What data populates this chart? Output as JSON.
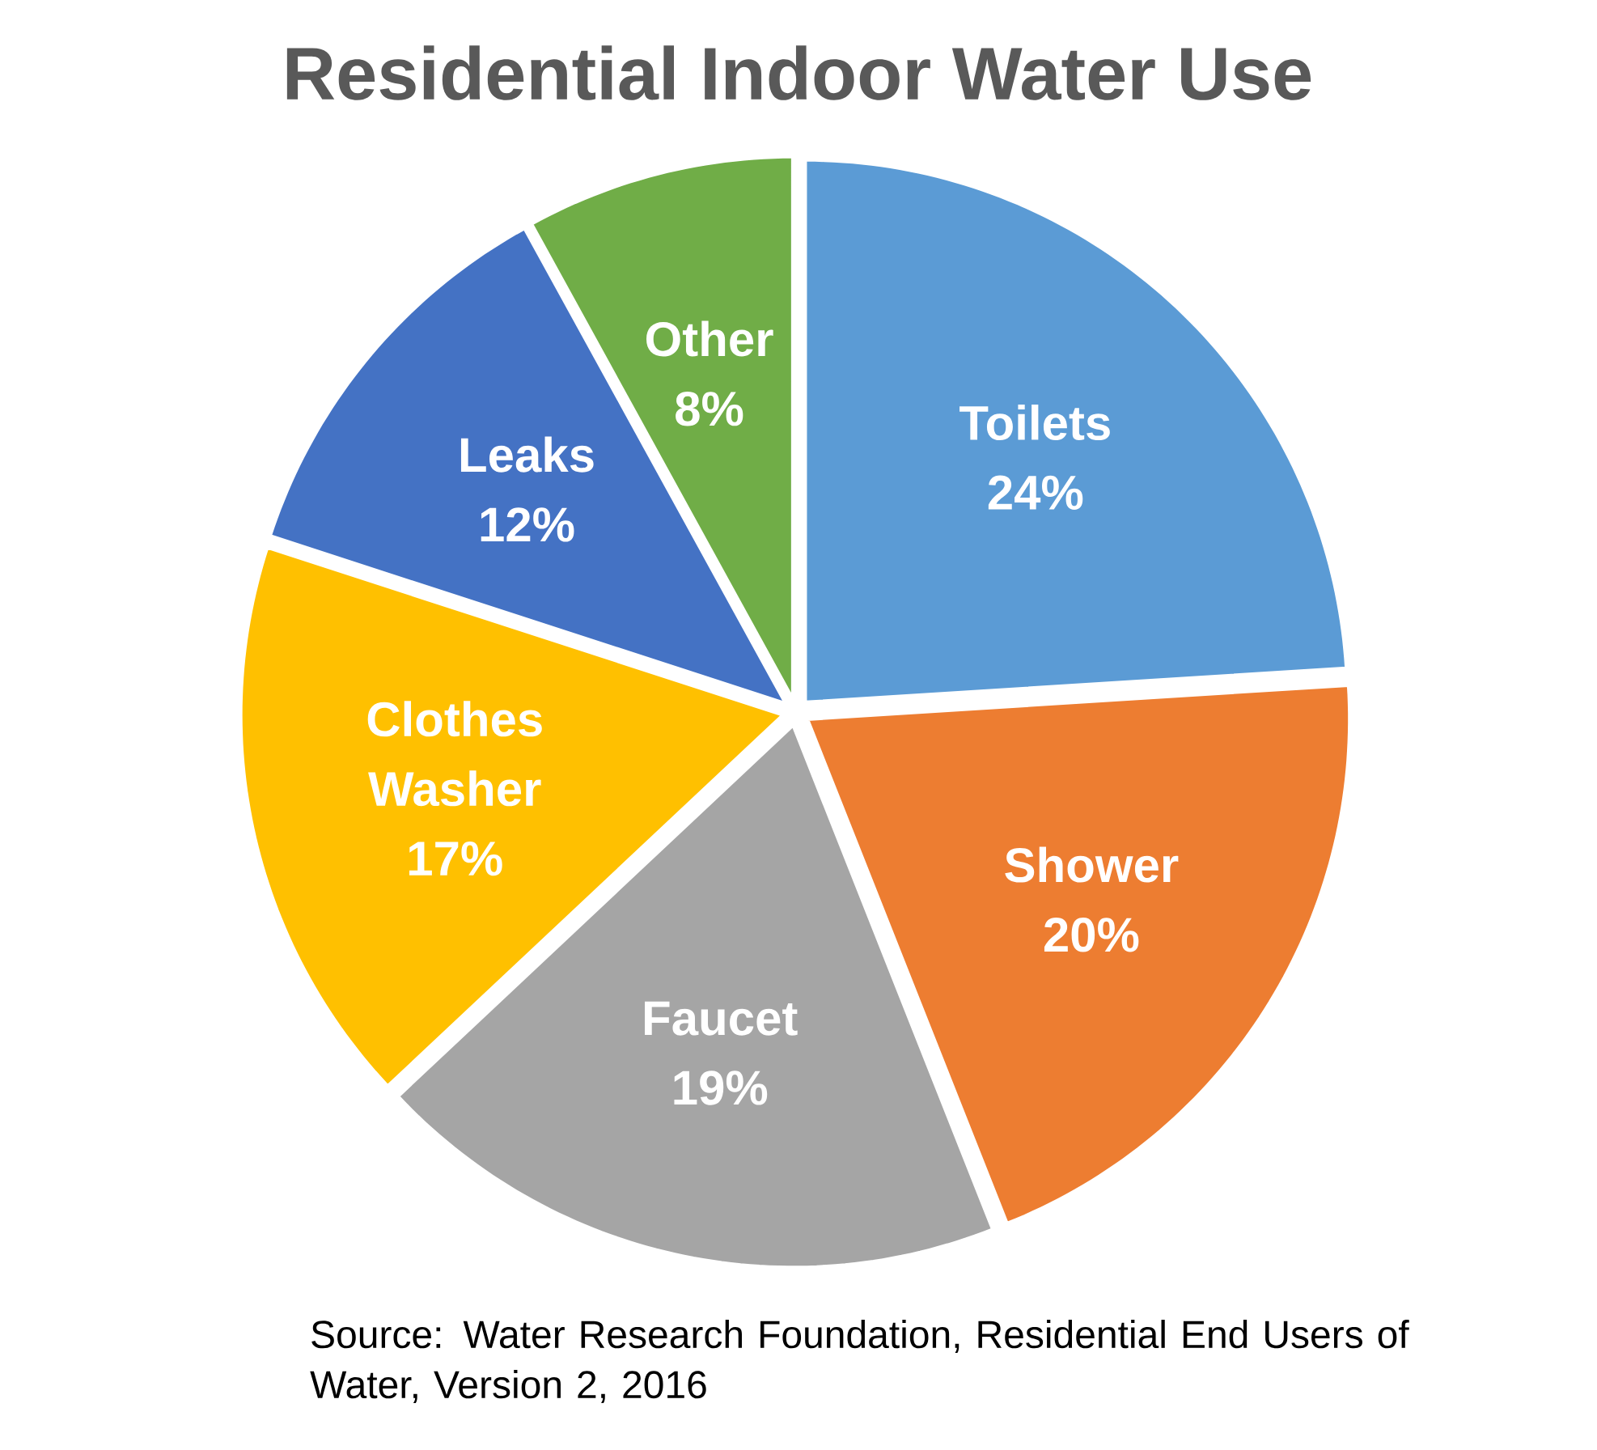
{
  "chart_data": {
    "type": "pie",
    "title": "Residential Indoor Water Use",
    "categories": [
      "Toilets",
      "Shower",
      "Faucet",
      "Clothes Washer",
      "Leaks",
      "Other"
    ],
    "values": [
      24,
      20,
      19,
      17,
      12,
      8
    ],
    "value_labels": [
      "24%",
      "20%",
      "19%",
      "17%",
      "12%",
      "8%"
    ],
    "colors": [
      "#5b9bd5",
      "#ed7d31",
      "#a5a5a5",
      "#ffc000",
      "#4472c4",
      "#70ad47"
    ],
    "annotations": [
      "Source: Water Research Foundation, Residential End Users of Water, Version 2, 2016"
    ]
  }
}
